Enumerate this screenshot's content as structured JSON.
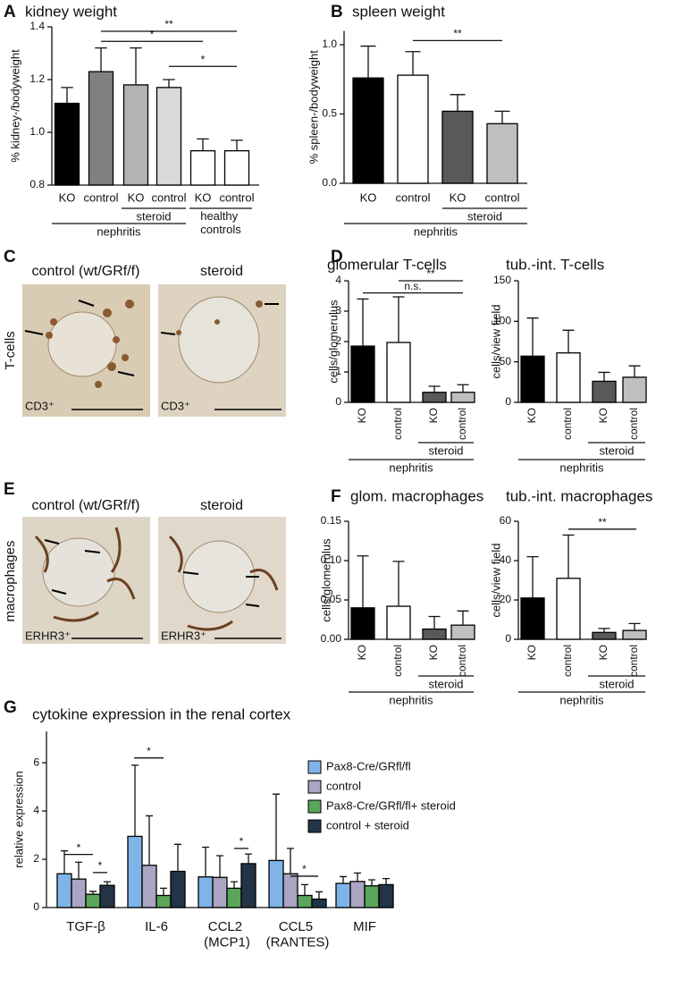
{
  "figure": {
    "panel_labels": [
      "A",
      "B",
      "C",
      "D",
      "E",
      "F",
      "G"
    ],
    "row_labels": [
      "T-cells",
      "macrophages"
    ],
    "micrographs": [
      {
        "title": "control (wt/GRf/f)",
        "stain": "CD3⁺"
      },
      {
        "title": "steroid",
        "stain": "CD3⁺"
      },
      {
        "title": "control (wt/GRf/f)",
        "stain": "ERHR3⁺"
      },
      {
        "title": "steroid",
        "stain": "ERHR3⁺"
      }
    ]
  },
  "chart_data": [
    {
      "type": "bar",
      "title": "kidney weight",
      "ylabel": "% kidney-/bodyweight",
      "categories": [
        "KO",
        "control",
        "KO",
        "control",
        "KO",
        "control"
      ],
      "values": [
        1.11,
        1.23,
        1.18,
        1.17,
        0.93,
        0.93
      ],
      "errors": [
        0.06,
        0.09,
        0.14,
        0.03,
        0.045,
        0.04
      ],
      "colors": [
        "#000000",
        "#808080",
        "#b3b3b3",
        "#d9d9d9",
        "#ffffff",
        "#ffffff"
      ],
      "ylim": [
        0.8,
        1.4
      ],
      "yticks": [
        0.8,
        {
          "value": 1,
          "label": "1.0"
        },
        1.2,
        1.4
      ],
      "group_labels": [
        "steroid",
        "healthy controls",
        "nephritis"
      ],
      "significance": [
        "**",
        "*",
        "*"
      ]
    },
    {
      "type": "bar",
      "title": "spleen weight",
      "ylabel": "% spleen-/bodyweight",
      "categories": [
        "KO",
        "control",
        "KO",
        "control"
      ],
      "values": [
        0.76,
        0.78,
        0.52,
        0.43
      ],
      "errors": [
        0.23,
        0.17,
        0.12,
        0.09
      ],
      "colors": [
        "#000000",
        "#ffffff",
        "#595959",
        "#bfbfbf"
      ],
      "ylim": [
        0,
        1.1
      ],
      "yticks": [
        {
          "value": 0,
          "label": "0.0"
        },
        0.5,
        {
          "value": 1,
          "label": "1.0"
        }
      ],
      "group_labels": [
        "steroid",
        "nephritis"
      ],
      "significance": [
        "**"
      ]
    },
    {
      "type": "bar",
      "title": "glomerular T-cells",
      "ylabel": "cells/glomerulus",
      "categories": [
        "KO",
        "control",
        "KO",
        "control"
      ],
      "values": [
        1.85,
        1.97,
        0.33,
        0.33
      ],
      "errors": [
        1.55,
        1.5,
        0.2,
        0.25
      ],
      "colors": [
        "#000000",
        "#ffffff",
        "#595959",
        "#bfbfbf"
      ],
      "ylim": [
        0,
        4
      ],
      "yticks": [
        0,
        1,
        2,
        3,
        4
      ],
      "group_labels": [
        "steroid",
        "nephritis"
      ],
      "significance": [
        "**",
        "n.s."
      ]
    },
    {
      "type": "bar",
      "title": "tub.-int. T-cells",
      "ylabel": "cells/view field",
      "categories": [
        "KO",
        "control",
        "KO",
        "control"
      ],
      "values": [
        57,
        61,
        26,
        31
      ],
      "errors": [
        47,
        28,
        11,
        14
      ],
      "colors": [
        "#000000",
        "#ffffff",
        "#595959",
        "#bfbfbf"
      ],
      "ylim": [
        0,
        150
      ],
      "yticks": [
        0,
        50,
        100,
        150
      ],
      "group_labels": [
        "steroid",
        "nephritis"
      ],
      "significance": []
    },
    {
      "type": "bar",
      "title": "glom. macrophages",
      "ylabel": "cells/glomerulus",
      "categories": [
        "KO",
        "control",
        "KO",
        "control"
      ],
      "values": [
        0.04,
        0.042,
        0.013,
        0.018
      ],
      "errors": [
        0.066,
        0.057,
        0.016,
        0.018
      ],
      "colors": [
        "#000000",
        "#ffffff",
        "#595959",
        "#bfbfbf"
      ],
      "ylim": [
        0,
        0.15
      ],
      "yticks": [
        {
          "value": 0,
          "label": "0.00"
        },
        {
          "value": 0.05,
          "label": "0.05"
        },
        {
          "value": 0.1,
          "label": "0.10"
        },
        {
          "value": 0.15,
          "label": "0.15"
        }
      ],
      "group_labels": [
        "steroid",
        "nephritis"
      ],
      "significance": []
    },
    {
      "type": "bar",
      "title": "tub.-int. macrophages",
      "ylabel": "cells/view field",
      "categories": [
        "KO",
        "control",
        "KO",
        "control"
      ],
      "values": [
        21,
        31,
        3.5,
        4.5
      ],
      "errors": [
        21,
        22,
        2,
        3.5
      ],
      "colors": [
        "#000000",
        "#ffffff",
        "#595959",
        "#bfbfbf"
      ],
      "ylim": [
        0,
        60
      ],
      "yticks": [
        0,
        20,
        40,
        60
      ],
      "group_labels": [
        "steroid",
        "nephritis"
      ],
      "significance": [
        "**"
      ]
    },
    {
      "type": "bar",
      "title": "cytokine expression in the renal cortex",
      "ylabel": "relative expression",
      "categories": [
        "TGF-β",
        "IL-6",
        "CCL2 (MCP1)",
        "CCL5 (RANTES)",
        "MIF"
      ],
      "series": [
        {
          "name": "Pax8-Cre/GRfl/fl",
          "color": "#80b4e8",
          "values": [
            1.4,
            2.95,
            1.27,
            1.95,
            1.0
          ],
          "errors": [
            0.95,
            2.95,
            1.23,
            2.75,
            0.28
          ]
        },
        {
          "name": "control",
          "color": "#a9a5c2",
          "values": [
            1.18,
            1.75,
            1.25,
            1.4,
            1.08
          ],
          "errors": [
            0.7,
            2.05,
            0.9,
            1.05,
            0.35
          ]
        },
        {
          "name": "Pax8-Cre/GRfl/fl+ steroid",
          "color": "#5aa55a",
          "values": [
            0.55,
            0.5,
            0.8,
            0.5,
            0.9
          ],
          "errors": [
            0.12,
            0.3,
            0.27,
            0.45,
            0.25
          ]
        },
        {
          "name": "control + steroid",
          "color": "#233446",
          "values": [
            0.92,
            1.5,
            1.82,
            0.35,
            0.95
          ],
          "errors": [
            0.15,
            1.12,
            0.4,
            0.3,
            0.25
          ]
        }
      ],
      "ylim": [
        0,
        7.3
      ],
      "yticks": [
        0,
        2,
        4,
        6
      ],
      "significance": [
        "*",
        "*",
        "*",
        "*",
        "*"
      ]
    }
  ]
}
